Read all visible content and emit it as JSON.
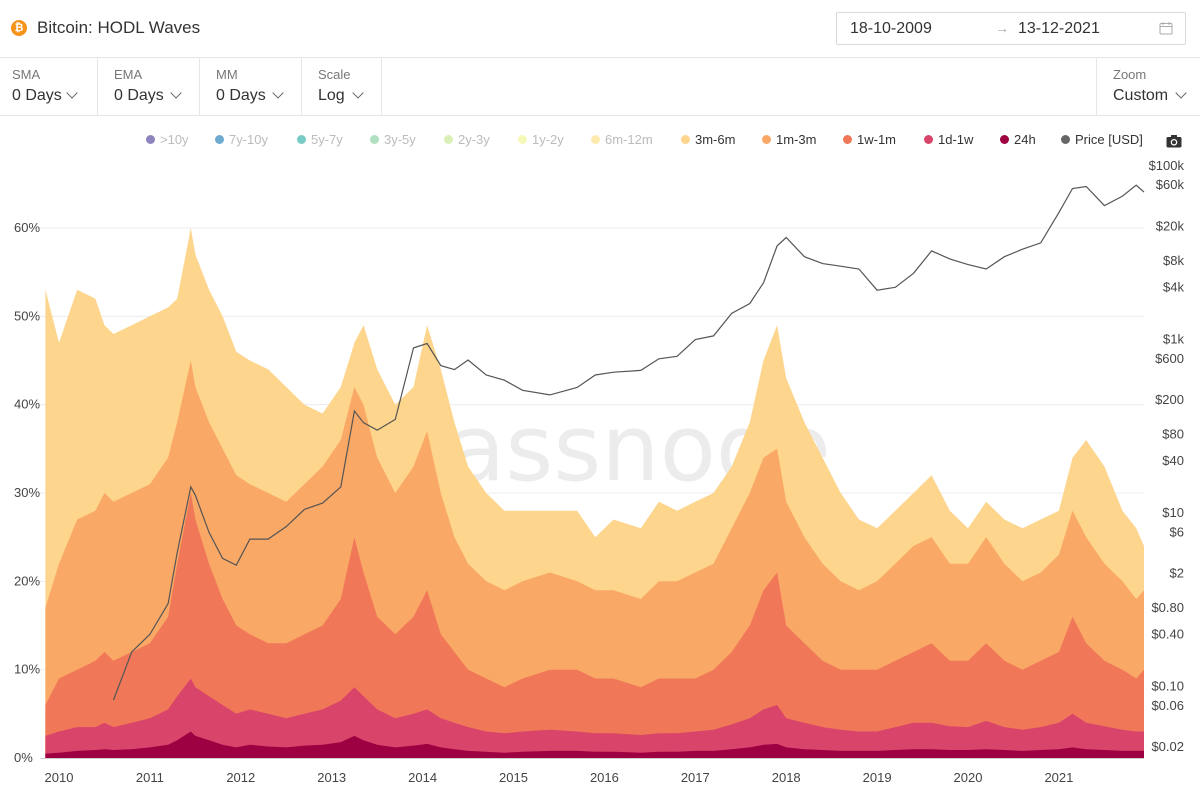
{
  "header": {
    "title": "Bitcoin: HODL Waves",
    "btc_symbol": "₿",
    "date_start": "18-10-2009",
    "date_arrow": "→",
    "date_end": "13-12-2021"
  },
  "controls": {
    "sma": {
      "label": "SMA",
      "value": "0 Days"
    },
    "ema": {
      "label": "EMA",
      "value": "0 Days"
    },
    "mm": {
      "label": "MM",
      "value": "0 Days"
    },
    "scale": {
      "label": "Scale",
      "value": "Log"
    },
    "zoom": {
      "label": "Zoom",
      "value": "Custom"
    }
  },
  "watermark": "glassnode",
  "legend": [
    {
      "name": ">10y",
      "color": "#5e4fa2",
      "active": false
    },
    {
      "name": "7y-10y",
      "color": "#3288bd",
      "active": false
    },
    {
      "name": "5y-7y",
      "color": "#3fb7ad",
      "active": false
    },
    {
      "name": "3y-5y",
      "color": "#8fd3a4",
      "active": false
    },
    {
      "name": "2y-3y",
      "color": "#c7e99a",
      "active": false
    },
    {
      "name": "1y-2y",
      "color": "#f2f59a",
      "active": false
    },
    {
      "name": "6m-12m",
      "color": "#fde08b",
      "active": false
    },
    {
      "name": "3m-6m",
      "color": "#fdd58c",
      "active": true
    },
    {
      "name": "1m-3m",
      "color": "#f9a866",
      "active": true
    },
    {
      "name": "1w-1m",
      "color": "#f07858",
      "active": true
    },
    {
      "name": "1d-1w",
      "color": "#d9446a",
      "active": true
    },
    {
      "name": "24h",
      "color": "#9e0142",
      "active": true
    },
    {
      "name": "Price [USD]",
      "color": "#666666",
      "active": true
    }
  ],
  "chart_data": {
    "type": "area",
    "x_ticks": [
      "2010",
      "2011",
      "2012",
      "2013",
      "2014",
      "2015",
      "2016",
      "2017",
      "2018",
      "2019",
      "2020",
      "2021"
    ],
    "y_left_ticks": [
      "0%",
      "10%",
      "20%",
      "30%",
      "40%",
      "50%",
      "60%"
    ],
    "y_left_range": [
      0,
      60
    ],
    "y_right_ticks": [
      "$0.02",
      "$0.06",
      "$0.10",
      "$0.40",
      "$0.80",
      "$2",
      "$6",
      "$10",
      "$40",
      "$80",
      "$200",
      "$600",
      "$1k",
      "$4k",
      "$8k",
      "$20k",
      "$60k",
      "$100k"
    ],
    "y_right_scale": "log",
    "x": [
      2009.85,
      2010.0,
      2010.2,
      2010.4,
      2010.5,
      2010.6,
      2010.8,
      2011.0,
      2011.2,
      2011.3,
      2011.45,
      2011.5,
      2011.65,
      2011.8,
      2011.95,
      2012.1,
      2012.3,
      2012.5,
      2012.7,
      2012.9,
      2013.1,
      2013.25,
      2013.35,
      2013.5,
      2013.7,
      2013.9,
      2014.05,
      2014.2,
      2014.35,
      2014.5,
      2014.7,
      2014.9,
      2015.1,
      2015.4,
      2015.7,
      2015.9,
      2016.1,
      2016.4,
      2016.6,
      2016.8,
      2017.0,
      2017.2,
      2017.4,
      2017.6,
      2017.75,
      2017.9,
      2018.0,
      2018.2,
      2018.4,
      2018.6,
      2018.8,
      2019.0,
      2019.2,
      2019.4,
      2019.6,
      2019.8,
      2020.0,
      2020.2,
      2020.4,
      2020.6,
      2020.8,
      2021.0,
      2021.15,
      2021.3,
      2021.5,
      2021.7,
      2021.85,
      2021.95
    ],
    "series": [
      {
        "name": "24h",
        "values": [
          0.5,
          0.6,
          0.8,
          0.9,
          1.0,
          0.9,
          1.0,
          1.2,
          1.5,
          2.0,
          3.0,
          2.5,
          2.0,
          1.5,
          1.2,
          1.5,
          1.3,
          1.2,
          1.4,
          1.5,
          1.8,
          2.5,
          2.0,
          1.5,
          1.2,
          1.4,
          1.6,
          1.2,
          1.0,
          0.8,
          0.7,
          0.6,
          0.7,
          0.8,
          0.8,
          0.7,
          0.7,
          0.6,
          0.7,
          0.7,
          0.8,
          0.8,
          1.0,
          1.2,
          1.5,
          1.6,
          1.2,
          1.0,
          0.9,
          0.8,
          0.8,
          0.8,
          0.9,
          1.0,
          1.0,
          0.9,
          0.9,
          1.0,
          0.9,
          0.8,
          0.9,
          1.0,
          1.2,
          1.0,
          0.9,
          0.8,
          0.8,
          0.8
        ]
      },
      {
        "name": "1d-1w",
        "values": [
          2.5,
          3.0,
          3.5,
          3.5,
          4.0,
          3.5,
          4.0,
          4.5,
          5.5,
          7.0,
          9.0,
          8.0,
          7.0,
          6.0,
          5.0,
          5.5,
          5.0,
          4.5,
          5.0,
          5.5,
          6.5,
          8.0,
          7.0,
          5.5,
          4.5,
          5.0,
          5.5,
          4.5,
          4.0,
          3.5,
          3.0,
          2.8,
          3.0,
          3.2,
          3.0,
          2.8,
          2.8,
          2.6,
          2.8,
          2.8,
          3.0,
          3.2,
          3.8,
          4.5,
          5.5,
          6.0,
          4.5,
          4.0,
          3.5,
          3.2,
          3.0,
          3.0,
          3.5,
          4.0,
          4.0,
          3.6,
          3.5,
          4.2,
          3.5,
          3.2,
          3.5,
          4.0,
          5.0,
          4.0,
          3.6,
          3.2,
          3.0,
          3.0
        ]
      },
      {
        "name": "1w-1m",
        "values": [
          6,
          9,
          10,
          11,
          12,
          11,
          12,
          13,
          16,
          22,
          30,
          27,
          22,
          18,
          15,
          14,
          13,
          13,
          14,
          15,
          18,
          25,
          21,
          16,
          14,
          16,
          19,
          14,
          12,
          10,
          9,
          8,
          9,
          10,
          10,
          9,
          9,
          8,
          9,
          9,
          9,
          10,
          12,
          15,
          19,
          21,
          15,
          13,
          11,
          10,
          10,
          10,
          11,
          12,
          13,
          11,
          11,
          13,
          11,
          10,
          11,
          12,
          16,
          13,
          11,
          10,
          9,
          10
        ]
      },
      {
        "name": "1m-3m",
        "values": [
          17,
          22,
          27,
          28,
          30,
          29,
          30,
          31,
          34,
          38,
          45,
          42,
          38,
          35,
          32,
          31,
          30,
          29,
          31,
          33,
          36,
          42,
          40,
          34,
          30,
          33,
          37,
          30,
          25,
          22,
          20,
          19,
          20,
          21,
          20,
          19,
          19,
          18,
          20,
          20,
          21,
          22,
          26,
          30,
          34,
          35,
          29,
          25,
          22,
          20,
          19,
          20,
          22,
          24,
          25,
          22,
          22,
          25,
          22,
          20,
          21,
          23,
          28,
          25,
          22,
          20,
          18,
          19
        ]
      },
      {
        "name": "3m-6m",
        "values": [
          53,
          47,
          53,
          52,
          49,
          48,
          49,
          50,
          51,
          52,
          60,
          57,
          53,
          50,
          46,
          45,
          44,
          42,
          40,
          39,
          42,
          47,
          49,
          44,
          40,
          42,
          49,
          44,
          38,
          33,
          30,
          28,
          28,
          28,
          28,
          25,
          27,
          26,
          29,
          28,
          29,
          30,
          33,
          38,
          45,
          49,
          43,
          38,
          34,
          30,
          27,
          26,
          28,
          30,
          32,
          28,
          26,
          29,
          27,
          26,
          27,
          28,
          34,
          36,
          33,
          28,
          26,
          24
        ]
      },
      {
        "name": "Price [USD]",
        "values": [
          0.05,
          0.05,
          0.06,
          0.07,
          0.08,
          0.07,
          0.25,
          0.4,
          0.9,
          3.5,
          20,
          16,
          6,
          3,
          2.5,
          5,
          5,
          7,
          11,
          13,
          20,
          150,
          110,
          90,
          120,
          800,
          900,
          500,
          450,
          580,
          390,
          340,
          260,
          230,
          280,
          390,
          420,
          440,
          600,
          640,
          1000,
          1100,
          2000,
          2600,
          4500,
          12000,
          15000,
          9000,
          7500,
          7000,
          6500,
          3700,
          4000,
          5800,
          10500,
          8500,
          7300,
          6500,
          9000,
          11000,
          13000,
          29000,
          55000,
          58000,
          35000,
          45000,
          60000,
          50000
        ]
      }
    ]
  }
}
